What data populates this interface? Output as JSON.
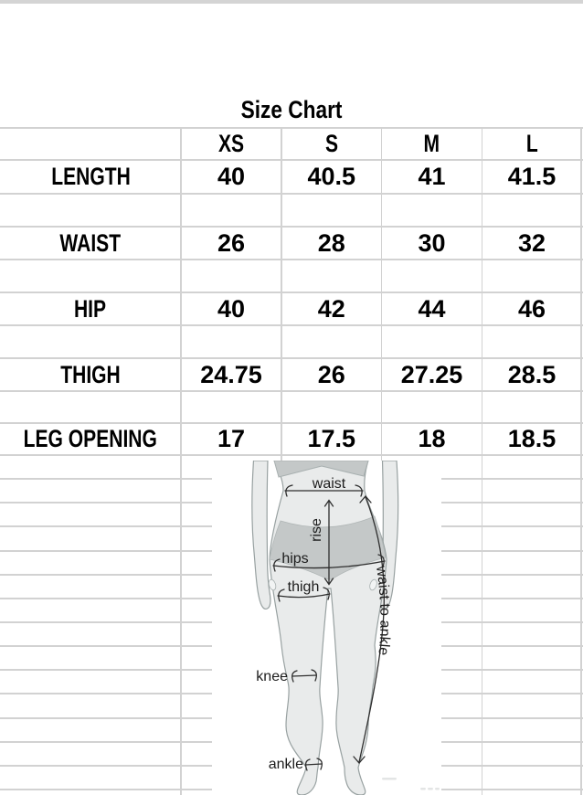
{
  "title": "Size Chart",
  "table": {
    "sizes": [
      "XS",
      "S",
      "M",
      "L"
    ],
    "rows": [
      {
        "label": "LENGTH",
        "values": [
          "40",
          "40.5",
          "41",
          "41.5"
        ]
      },
      {
        "label": "WAIST",
        "values": [
          "26",
          "28",
          "30",
          "32"
        ]
      },
      {
        "label": "HIP",
        "values": [
          "40",
          "42",
          "44",
          "46"
        ]
      },
      {
        "label": "THIGH",
        "values": [
          "24.75",
          "26",
          "27.25",
          "28.5"
        ]
      },
      {
        "label": "LEG OPENING",
        "values": [
          "17",
          "17.5",
          "18",
          "18.5"
        ]
      }
    ]
  },
  "illustration": {
    "labels": {
      "waist": "waist",
      "rise": "rise",
      "hips": "hips",
      "thigh": "thigh",
      "knee": "knee",
      "ankle": "ankle",
      "waist_to_ankle": "waist to ankle"
    }
  },
  "colors": {
    "gridline": "#d2d2d2",
    "top_bar": "#d4d4d4",
    "table_text": "#000000",
    "body_fill": "#e9ebeb",
    "body_outline": "#98a1a1",
    "garment_fill": "#c4c8c8",
    "arrow": "#2e2e2e",
    "label_text": "#1c1c1c"
  }
}
